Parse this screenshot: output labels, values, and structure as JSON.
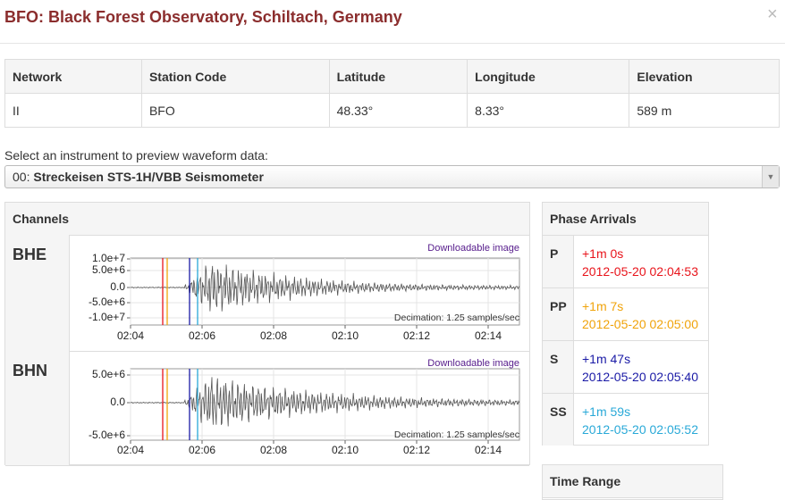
{
  "header": {
    "title": "BFO: Black Forest Observatory, Schiltach, Germany",
    "close": "×"
  },
  "station_table": {
    "columns": [
      "Network",
      "Station Code",
      "Latitude",
      "Longitude",
      "Elevation"
    ],
    "rows": [
      [
        "II",
        "BFO",
        "48.33°",
        "8.33°",
        "589 m"
      ]
    ]
  },
  "instrument": {
    "label": "Select an instrument to preview waveform data:",
    "code": "00:",
    "name": "Streckeisen STS-1H/VBB Seismometer"
  },
  "channels": {
    "title": "Channels",
    "link": "Downloadable image",
    "decimation": "Decimation: 1.25 samples/sec",
    "x_ticks": [
      "02:04",
      "02:06",
      "02:08",
      "02:10",
      "02:12",
      "02:14"
    ],
    "items": [
      {
        "name": "BHE",
        "y_ticks": [
          "1.0e+7",
          "5.0e+6",
          "0.0",
          "-5.0e+6",
          "-1.0e+7"
        ]
      },
      {
        "name": "BHN",
        "y_ticks": [
          "5.0e+6",
          "0.0",
          "-5.0e+6"
        ]
      }
    ]
  },
  "phase_arrivals": {
    "title": "Phase Arrivals",
    "rows": [
      {
        "phase": "P",
        "offset": "+1m 0s",
        "time": "2012-05-20 02:04:53",
        "color": "#e8141b"
      },
      {
        "phase": "PP",
        "offset": "+1m 7s",
        "time": "2012-05-20 02:05:00",
        "color": "#f0a30a"
      },
      {
        "phase": "S",
        "offset": "+1m 47s",
        "time": "2012-05-20 02:05:40",
        "color": "#1a1aa6"
      },
      {
        "phase": "SS",
        "offset": "+1m 59s",
        "time": "2012-05-20 02:05:52",
        "color": "#29a9d8"
      }
    ]
  },
  "time_range": {
    "title": "Time Range"
  }
}
